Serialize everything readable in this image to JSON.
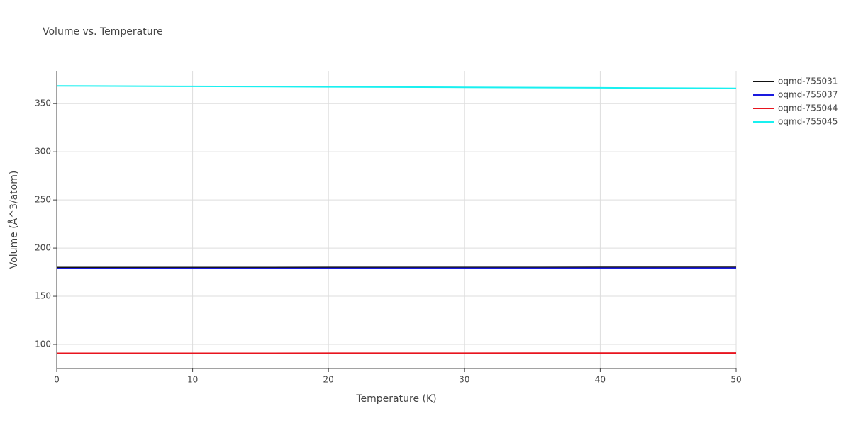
{
  "chart_data": {
    "type": "line",
    "title": "Volume vs. Temperature",
    "x_label": "Temperature (K)",
    "y_label": "Volume (Å^3/atom)",
    "x": [
      0,
      10,
      20,
      30,
      40,
      50
    ],
    "series": [
      {
        "name": "oqmd-755031",
        "color": "#111111",
        "values": [
          179.8,
          179.8,
          179.9,
          179.9,
          180.0,
          180.0
        ]
      },
      {
        "name": "oqmd-755037",
        "color": "#1a1adf",
        "values": [
          178.7,
          178.8,
          178.9,
          179.0,
          179.1,
          179.2
        ]
      },
      {
        "name": "oqmd-755044",
        "color": "#e8141e",
        "values": [
          90.8,
          90.8,
          90.9,
          90.9,
          91.0,
          91.1
        ]
      },
      {
        "name": "oqmd-755045",
        "color": "#19f0f0",
        "values": [
          368.4,
          367.9,
          367.4,
          366.9,
          366.4,
          365.8
        ]
      }
    ],
    "xlim": [
      0,
      50
    ],
    "xticks": [
      0,
      10,
      20,
      30,
      40,
      50
    ],
    "ylim": [
      75,
      384
    ],
    "yticks": [
      100,
      150,
      200,
      250,
      300,
      350
    ],
    "grid": true,
    "legend": "right"
  }
}
